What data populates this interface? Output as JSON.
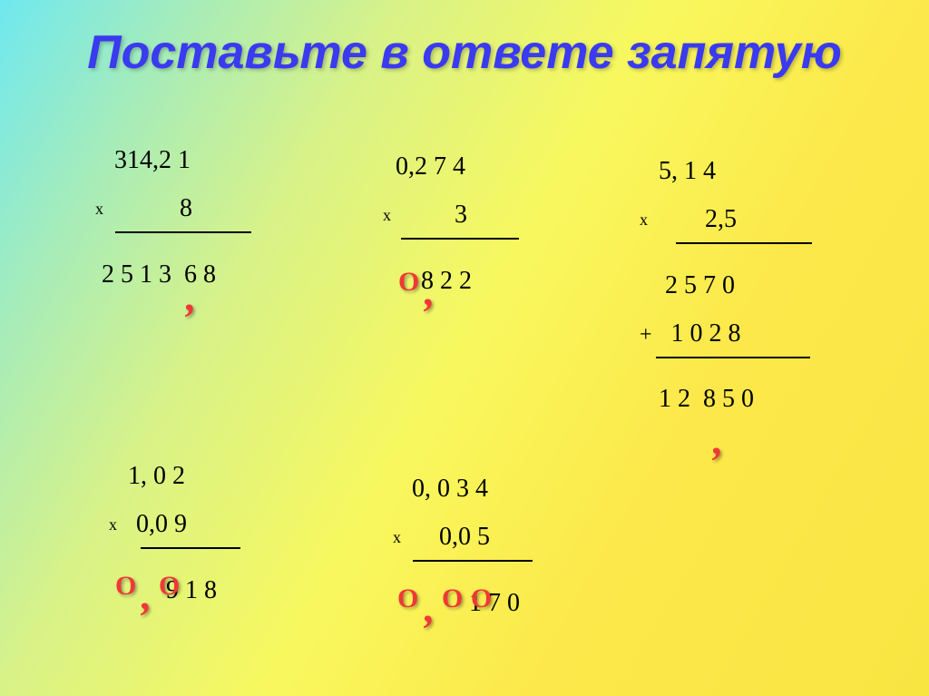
{
  "title": "Поставьте в ответе запятую",
  "p1": {
    "l1": "314,2 1",
    "l2": "8",
    "l3": "2 5 1 3  6 8",
    "hr_w": 150
  },
  "p2": {
    "l1": "0,2 7 4",
    "l2": "3",
    "l3": "8 2 2",
    "hr_w": 130
  },
  "p3": {
    "l1": "5, 1 4",
    "l2": "2,5",
    "l3": "2 5 7 0",
    "l4": "1 0 2 8",
    "l5": "1 2  8 5 0",
    "hr_w": 150,
    "hr2_w": 170
  },
  "p4": {
    "l1": "1, 0 2",
    "l2": "0,0 9",
    "l3": "9 1 8",
    "hr_w": 110
  },
  "p5": {
    "l1": "0, 0 3 4",
    "l2": "0,0 5",
    "l3": "1 7 0",
    "hr_w": 132
  },
  "sym": {
    "x": "х",
    "plus": "+",
    "O": "О"
  },
  "colors": {
    "title": "#3a3af0",
    "mark": "#f03838"
  }
}
